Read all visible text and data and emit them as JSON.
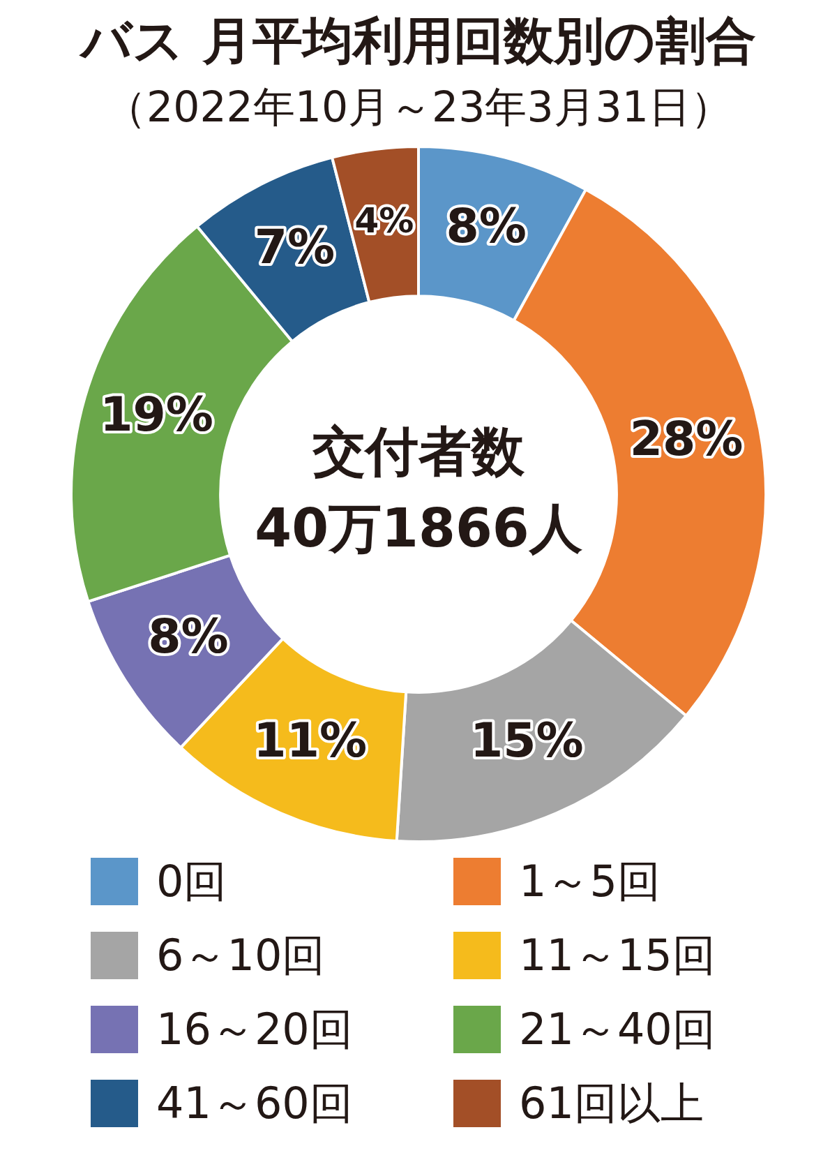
{
  "chart_data": {
    "type": "donut",
    "title": "バス 月平均利用回数別の割合",
    "subtitle": "（2022年10月～23年3月31日）",
    "categories": [
      "0回",
      "1～5回",
      "6～10回",
      "11～15回",
      "16～20回",
      "21～40回",
      "41～60回",
      "61回以上"
    ],
    "values": [
      8,
      28,
      15,
      11,
      8,
      19,
      7,
      4
    ],
    "colors": [
      "#5b96c9",
      "#ed7d31",
      "#a5a5a5",
      "#f5bb1c",
      "#7672b3",
      "#6aa74a",
      "#255b8a",
      "#a34f27"
    ],
    "value_labels": [
      "8%",
      "28%",
      "15%",
      "11%",
      "8%",
      "19%",
      "7%",
      "4%"
    ],
    "legend": "bottom",
    "annotations": [
      "交付者数",
      "40万1866人"
    ]
  }
}
